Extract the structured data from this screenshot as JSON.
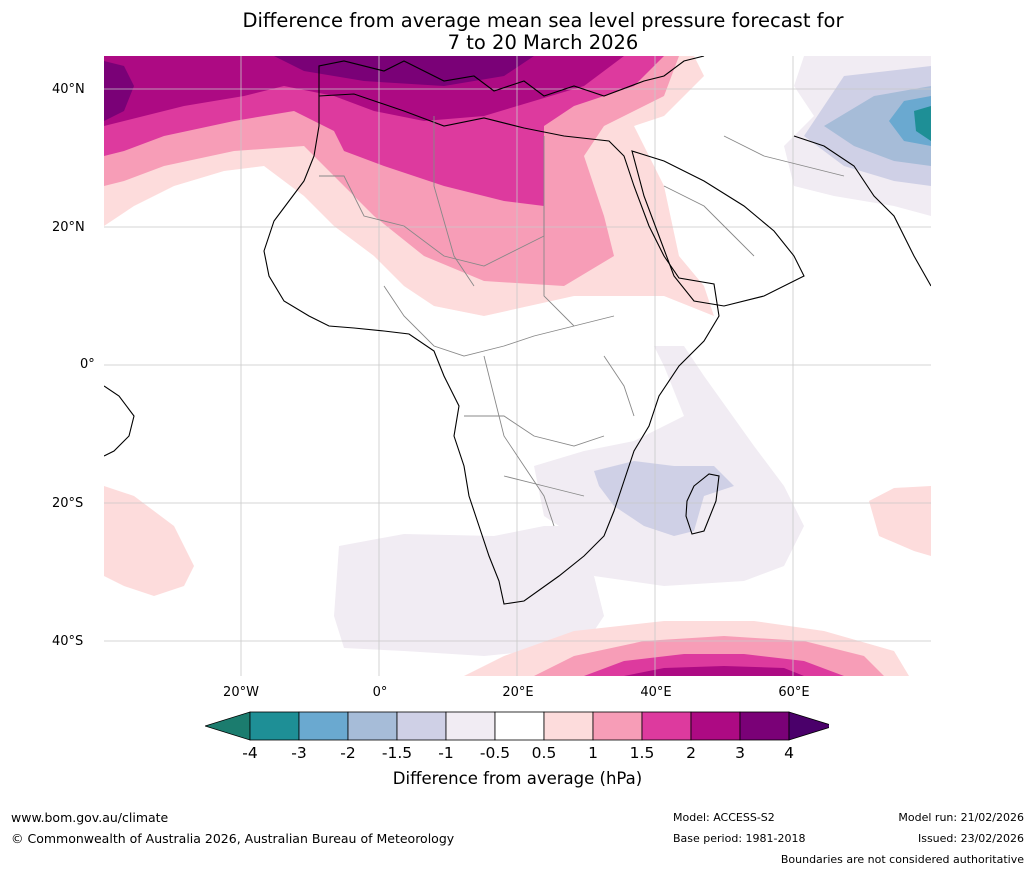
{
  "title": {
    "line1": "Difference from average mean sea level pressure forecast for",
    "line2": "7 to 20 March 2026"
  },
  "map": {
    "lat_labels": [
      "40°N",
      "20°N",
      "0°",
      "20°S",
      "40°S"
    ],
    "lon_labels": [
      "20°W",
      "0°",
      "20°E",
      "40°E",
      "60°E"
    ]
  },
  "colorbar": {
    "ticks": [
      "-4",
      "-3",
      "-2",
      "-1.5",
      "-1",
      "-0.5",
      "0.5",
      "1",
      "1.5",
      "2",
      "3",
      "4"
    ],
    "colors": [
      "#1b7c6e",
      "#1e8f96",
      "#6aa9d0",
      "#a6bcd8",
      "#cfd0e6",
      "#f1ecf3",
      "#ffffff",
      "#fddcdc",
      "#f79db7",
      "#dd3a9e",
      "#ad0a83",
      "#7a0177",
      "#4a006a"
    ],
    "label": "Difference from average (hPa)"
  },
  "footer": {
    "website": "www.bom.gov.au/climate",
    "copyright": "© Commonwealth of Australia 2026, Australian Bureau of Meteorology",
    "model": "Model: ACCESS-S2",
    "base_period": "Base period: 1981-2018",
    "model_run": "Model run: 21/02/2026",
    "issued": "Issued: 23/02/2026",
    "disclaimer": "Boundaries are not considered authoritative"
  }
}
